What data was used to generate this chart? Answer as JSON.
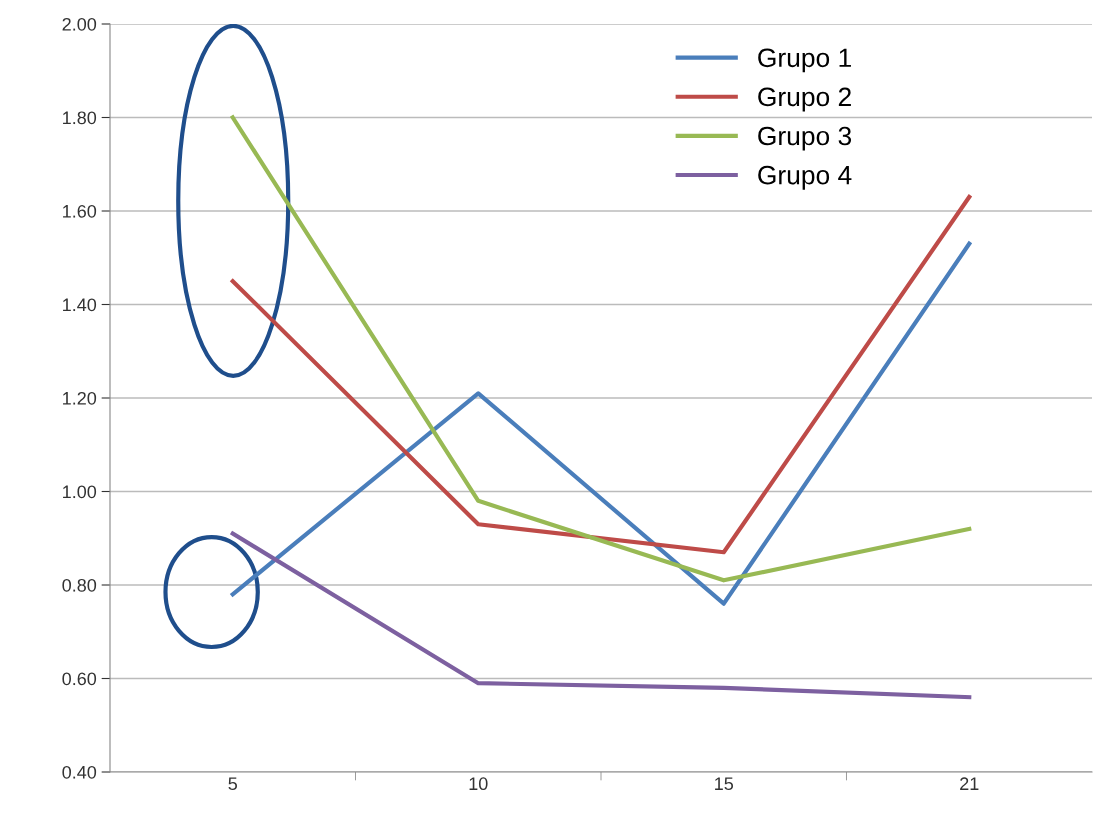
{
  "chart_data": {
    "type": "line",
    "categories": [
      "5",
      "10",
      "15",
      "21"
    ],
    "series": [
      {
        "name": "Grupo 1",
        "color": "#4a7ebb",
        "values": [
          0.78,
          1.21,
          0.76,
          1.53
        ]
      },
      {
        "name": "Grupo 2",
        "color": "#be4b48",
        "values": [
          1.45,
          0.93,
          0.87,
          1.63
        ]
      },
      {
        "name": "Grupo 3",
        "color": "#98b954",
        "values": [
          1.8,
          0.98,
          0.81,
          0.92
        ]
      },
      {
        "name": "Grupo 4",
        "color": "#7d60a0",
        "values": [
          0.91,
          0.59,
          0.58,
          0.56
        ]
      }
    ],
    "ylim": [
      0.4,
      2.0
    ],
    "yticks": [
      {
        "value": 0.4,
        "label": "0.40"
      },
      {
        "value": 0.6,
        "label": "0.60"
      },
      {
        "value": 0.8,
        "label": "0.80"
      },
      {
        "value": 1.0,
        "label": "1.00"
      },
      {
        "value": 1.2,
        "label": "1.20"
      },
      {
        "value": 1.4,
        "label": "1.40"
      },
      {
        "value": 1.6,
        "label": "1.60"
      },
      {
        "value": 1.8,
        "label": "1.80"
      },
      {
        "value": 2.0,
        "label": "2.00"
      }
    ],
    "grid": "y",
    "legend": "top right",
    "marker": "none",
    "line_style": "solid"
  }
}
